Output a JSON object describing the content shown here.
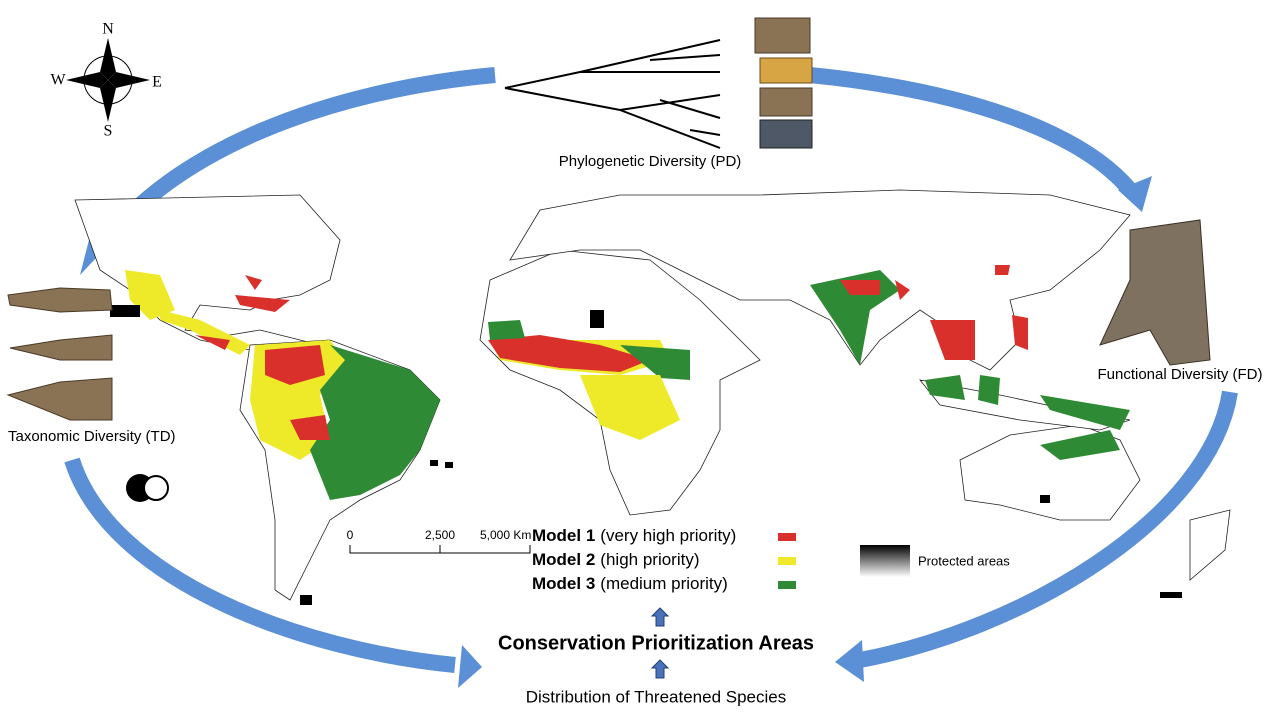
{
  "compass": {
    "north": "N",
    "south": "S",
    "west": "W",
    "east": "E"
  },
  "diversity": {
    "phylogenetic": "Phylogenetic Diversity (PD)",
    "taxonomic": "Taxonomic Diversity (TD)",
    "functional": "Functional Diversity (FD)"
  },
  "legend": {
    "models": [
      {
        "name": "Model 1",
        "description": "(very high priority)",
        "color": "#d9302c"
      },
      {
        "name": "Model 2",
        "description": "(high priority)",
        "color": "#eeea2a"
      },
      {
        "name": "Model 3",
        "description": "(medium priority)",
        "color": "#2e8a34"
      }
    ],
    "protected": "Protected areas"
  },
  "scale_bar": {
    "labels": [
      "0",
      "2,500",
      "5,000 Km"
    ]
  },
  "flow": {
    "result": "Conservation Prioritization Areas",
    "source": "Distribution of Threatened Species"
  }
}
